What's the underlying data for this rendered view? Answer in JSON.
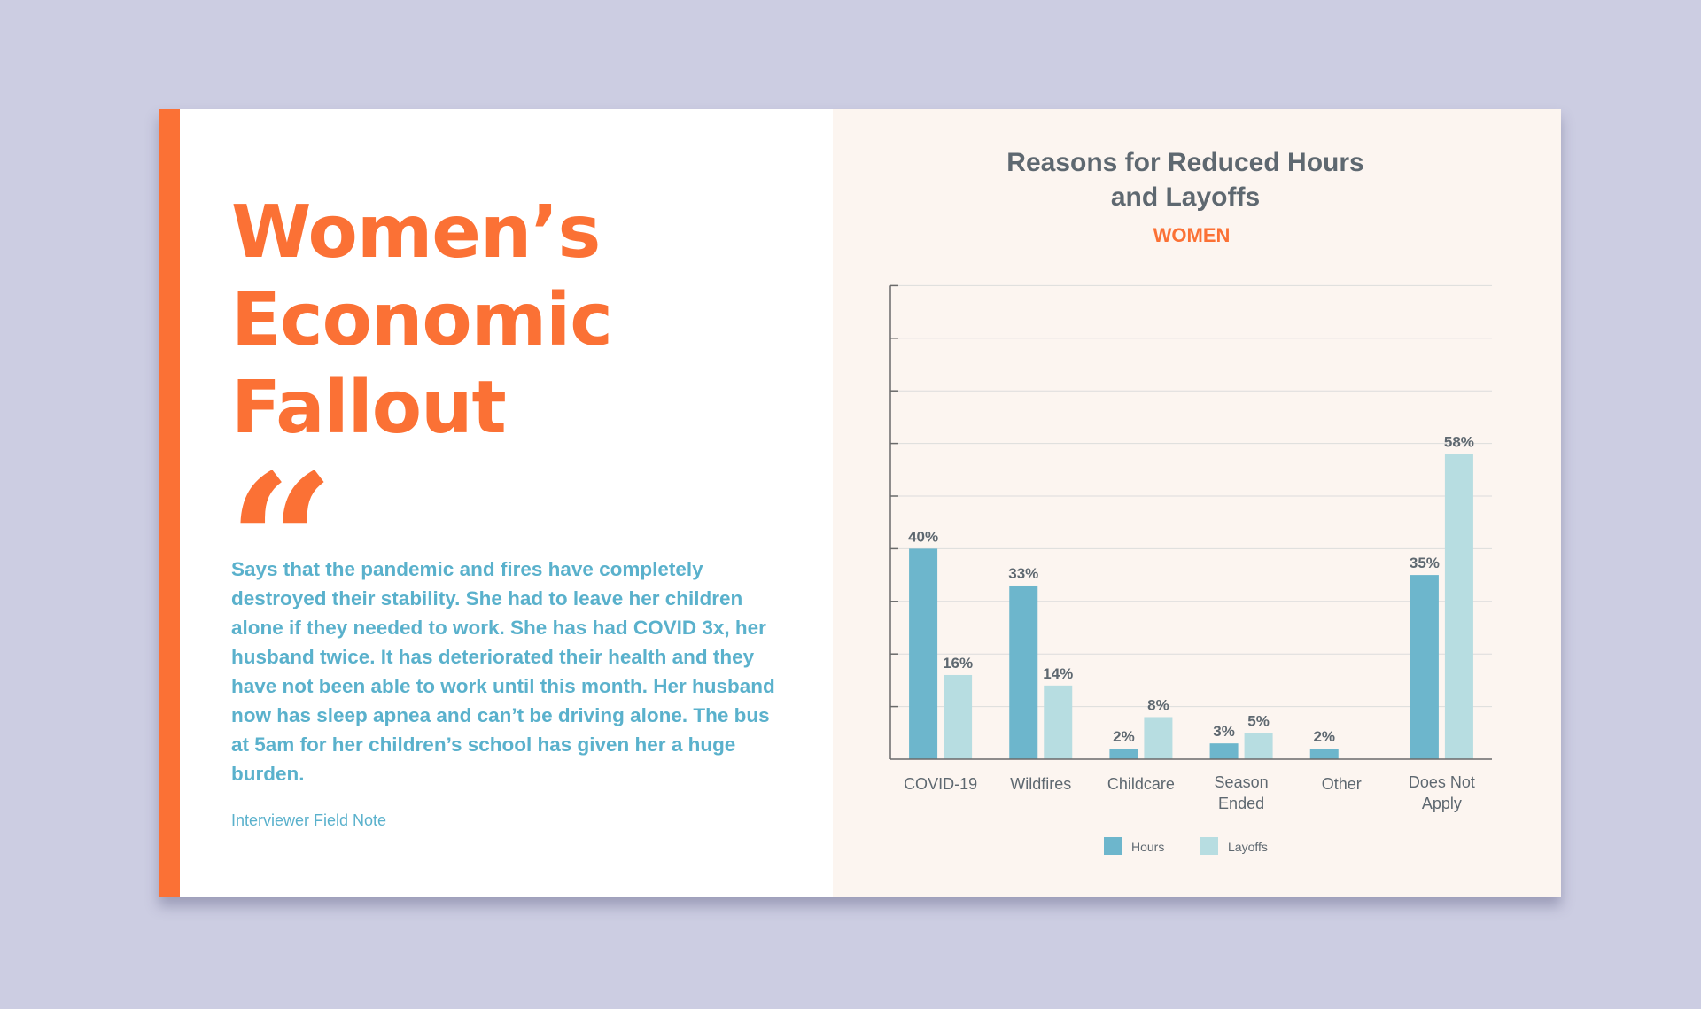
{
  "headline": {
    "lines": [
      "Women’s",
      "Economic",
      "Fallout"
    ]
  },
  "quote": {
    "text": "Says that the pandemic and fires have completely destroyed their stability. She had to leave her children alone if they needed to work. She has had COVID 3x, her husband twice. It has deteriorated their health and they have not been able to work until this month. Her husband now has sleep apnea and can’t be driving alone. The bus at 5am for her children’s school has given her a huge burden.",
    "attribution": "Interviewer Field Note"
  },
  "colors": {
    "accent": "#fb7135",
    "hours": "#6db6cc",
    "layoffs": "#b7dde1",
    "text_blue": "#5ab1cc",
    "text_gray": "#5e6870"
  },
  "chart_data": {
    "type": "bar",
    "title": "Reasons for Reduced Hours and Layoffs",
    "title_lines": [
      "Reasons for Reduced Hours",
      "and Layoffs"
    ],
    "subtitle": "WOMEN",
    "categories": [
      "COVID-19",
      "Wildfires",
      "Childcare",
      "Season Ended",
      "Other",
      "Does Not Apply"
    ],
    "category_lines": [
      [
        "COVID-19"
      ],
      [
        "Wildfires"
      ],
      [
        "Childcare"
      ],
      [
        "Season",
        "Ended"
      ],
      [
        "Other"
      ],
      [
        "Does Not",
        "Apply"
      ]
    ],
    "series": [
      {
        "name": "Hours",
        "values": [
          40,
          33,
          2,
          3,
          2,
          35
        ],
        "labels": [
          "40%",
          "33%",
          "2%",
          "3%",
          "2%",
          "35%"
        ]
      },
      {
        "name": "Layoffs",
        "values": [
          16,
          14,
          8,
          5,
          null,
          58
        ],
        "labels": [
          "16%",
          "14%",
          "8%",
          "5%",
          "",
          "58%"
        ]
      }
    ],
    "ylim": [
      0,
      90
    ],
    "y_tick_step": 10,
    "grid": true,
    "legend": "bottom-center",
    "xlabel": "",
    "ylabel": ""
  }
}
